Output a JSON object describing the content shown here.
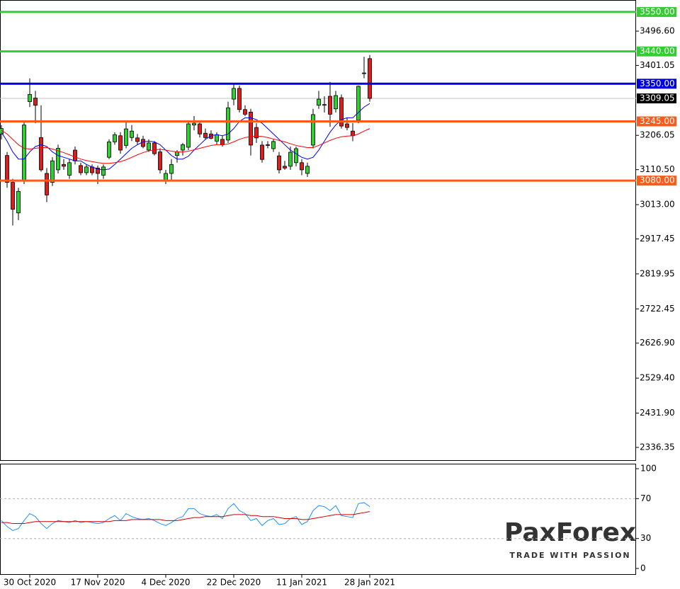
{
  "chart_data": [
    {
      "type": "candlestick",
      "categories": [
        null,
        null,
        null,
        null,
        null,
        "30 Oct 2020",
        null,
        null,
        null,
        null,
        null,
        null,
        null,
        null,
        null,
        null,
        null,
        "17 Nov 2020",
        null,
        null,
        null,
        null,
        null,
        null,
        null,
        null,
        null,
        null,
        null,
        "4 Dec 2020",
        null,
        null,
        null,
        null,
        null,
        null,
        null,
        null,
        null,
        null,
        null,
        "22 Dec 2020",
        null,
        null,
        null,
        null,
        null,
        null,
        null,
        null,
        null,
        null,
        null,
        "11 Jan 2021",
        null,
        null,
        null,
        null,
        null,
        null,
        null,
        null,
        null,
        null,
        null,
        "28 Jan 2021"
      ],
      "open": [
        3210,
        3150,
        3075,
        2990,
        3080,
        3300,
        3310,
        3200,
        3100,
        3075,
        3110,
        3125,
        3095,
        3165,
        3122,
        3102,
        3118,
        3115,
        3095,
        3145,
        3188,
        3205,
        3178,
        3200,
        3199,
        3195,
        3165,
        3185,
        3160,
        3080,
        3100,
        3150,
        3165,
        3173,
        3235,
        3238,
        3212,
        3210,
        3190,
        3195,
        3193,
        3307,
        3337,
        3278,
        3271,
        3228,
        3179,
        3180,
        3169,
        3149,
        3120,
        3120,
        3130,
        3130,
        3100,
        3179,
        3290,
        3290,
        3315,
        3280,
        3311,
        3238,
        3218,
        3248,
        3380,
        3420
      ],
      "high": [
        3235,
        3160,
        3085,
        3060,
        3245,
        3365,
        3330,
        3290,
        3115,
        3145,
        3180,
        3140,
        3140,
        3175,
        3130,
        3125,
        3125,
        3122,
        3125,
        3195,
        3215,
        3215,
        3245,
        3235,
        3210,
        3205,
        3195,
        3190,
        3170,
        3110,
        3140,
        3165,
        3185,
        3245,
        3260,
        3245,
        3225,
        3220,
        3215,
        3205,
        3300,
        3350,
        3345,
        3290,
        3280,
        3240,
        3190,
        3190,
        3195,
        3160,
        3135,
        3175,
        3175,
        3140,
        3130,
        3280,
        3330,
        3315,
        3355,
        3330,
        3320,
        3255,
        3240,
        3345,
        3425,
        3430
      ],
      "low": [
        3195,
        3060,
        2955,
        2970,
        3070,
        3285,
        3240,
        3105,
        3020,
        3065,
        3100,
        3110,
        3085,
        3125,
        3095,
        3095,
        3095,
        3070,
        3085,
        3140,
        3180,
        3155,
        3170,
        3190,
        3180,
        3170,
        3160,
        3150,
        3100,
        3070,
        3080,
        3130,
        3150,
        3165,
        3220,
        3200,
        3195,
        3195,
        3180,
        3175,
        3185,
        3290,
        3270,
        3260,
        3150,
        3185,
        3130,
        3170,
        3160,
        3100,
        3110,
        3110,
        3120,
        3095,
        3090,
        3170,
        3280,
        3270,
        3230,
        3270,
        3225,
        3220,
        3190,
        3240,
        3365,
        3300
      ],
      "close": [
        3225,
        3075,
        3000,
        3050,
        3235,
        3320,
        3290,
        3110,
        3040,
        3135,
        3170,
        3120,
        3130,
        3135,
        3102,
        3118,
        3102,
        3100,
        3118,
        3188,
        3208,
        3165,
        3224,
        3218,
        3189,
        3175,
        3185,
        3155,
        3110,
        3100,
        3125,
        3160,
        3180,
        3238,
        3240,
        3210,
        3200,
        3198,
        3208,
        3180,
        3283,
        3337,
        3278,
        3265,
        3179,
        3199,
        3139,
        3179,
        3189,
        3110,
        3115,
        3159,
        3169,
        3110,
        3120,
        3264,
        3307,
        3292,
        3265,
        3317,
        3232,
        3228,
        3205,
        3343,
        3380,
        3309.05
      ],
      "up_color": "#32cd32",
      "down_color": "#d81f1f",
      "series": [
        {
          "color": "#0000ff",
          "values": [
            3215,
            3190,
            3160,
            3140,
            3140,
            3160,
            3175,
            3180,
            3175,
            3160,
            3150,
            3145,
            3140,
            3135,
            3135,
            3125,
            3118,
            3112,
            3110,
            3112,
            3125,
            3140,
            3155,
            3170,
            3180,
            3188,
            3190,
            3188,
            3180,
            3165,
            3150,
            3140,
            3140,
            3148,
            3165,
            3180,
            3195,
            3205,
            3208,
            3205,
            3210,
            3225,
            3245,
            3255,
            3255,
            3250,
            3240,
            3225,
            3210,
            3195,
            3180,
            3165,
            3155,
            3145,
            3140,
            3145,
            3165,
            3190,
            3215,
            3235,
            3250,
            3255,
            3255,
            3270,
            3285,
            3295
          ]
        },
        {
          "color": "#ff0000",
          "values": [
            3220,
            3210,
            3195,
            3180,
            3170,
            3168,
            3170,
            3172,
            3172,
            3168,
            3163,
            3158,
            3152,
            3146,
            3140,
            3136,
            3133,
            3130,
            3128,
            3128,
            3130,
            3133,
            3138,
            3145,
            3152,
            3158,
            3163,
            3166,
            3167,
            3165,
            3162,
            3160,
            3160,
            3162,
            3166,
            3170,
            3174,
            3178,
            3180,
            3180,
            3182,
            3188,
            3195,
            3200,
            3203,
            3204,
            3203,
            3200,
            3196,
            3192,
            3188,
            3183,
            3178,
            3175,
            3172,
            3172,
            3178,
            3185,
            3192,
            3198,
            3202,
            3204,
            3205,
            3210,
            3218,
            3225
          ]
        }
      ],
      "levels": [
        {
          "value": 3550,
          "label": "3550.00",
          "color": "#33cc33"
        },
        {
          "value": 3440,
          "label": "3440.00",
          "color": "#33cc33"
        },
        {
          "value": 3350,
          "label": "3350.00",
          "color": "#0000dd"
        },
        {
          "value": 3245,
          "label": "3245.00",
          "color": "#ff5a1a"
        },
        {
          "value": 3080,
          "label": "3080.00",
          "color": "#ff5a1a"
        }
      ],
      "ylim": [
        2300.8,
        3583.4
      ],
      "yticks": [
        {
          "value": 3496.6,
          "label": "3496.60"
        },
        3401.05,
        3206.05,
        {
          "value": 3110.5,
          "label": "3110.50"
        },
        {
          "value": 3013,
          "label": "3013.00"
        },
        2917.45,
        2819.95,
        2722.45,
        {
          "value": 2626.9,
          "label": "2626.90"
        },
        {
          "value": 2529.4,
          "label": "2529.40"
        },
        {
          "value": 2431.9,
          "label": "2431.90"
        },
        2336.35
      ]
    },
    {
      "type": "line",
      "series": [
        {
          "color": "#1e90ff",
          "values": [
            48,
            42,
            38,
            40,
            48,
            55,
            52,
            45,
            40,
            45,
            48,
            47,
            46,
            48,
            46,
            47,
            46,
            45,
            46,
            50,
            53,
            48,
            55,
            52,
            50,
            49,
            50,
            48,
            45,
            43,
            46,
            50,
            52,
            60,
            60,
            55,
            53,
            52,
            54,
            50,
            60,
            65,
            58,
            55,
            48,
            50,
            43,
            48,
            50,
            44,
            45,
            50,
            52,
            44,
            47,
            58,
            63,
            62,
            58,
            63,
            53,
            52,
            51,
            65,
            66,
            62
          ]
        },
        {
          "color": "#cc0000",
          "values": [
            46,
            46,
            45,
            45,
            45,
            46,
            47,
            47,
            47,
            47,
            47,
            47,
            47,
            47,
            47,
            47,
            47,
            47,
            47,
            47,
            48,
            48,
            48,
            49,
            49,
            49,
            49,
            49,
            49,
            48,
            48,
            48,
            49,
            50,
            51,
            51,
            52,
            52,
            52,
            52,
            53,
            54,
            54,
            54,
            53,
            53,
            52,
            52,
            52,
            51,
            50,
            50,
            50,
            49,
            49,
            50,
            51,
            52,
            53,
            54,
            54,
            54,
            54,
            55,
            56,
            57
          ]
        }
      ],
      "ylim": [
        -6.4,
        105
      ],
      "yticks": [
        100,
        70,
        30,
        0
      ],
      "levels": [
        70,
        30
      ]
    }
  ],
  "logo": {
    "name": "PaxForex",
    "tagline": "TRADE WITH PASSION"
  }
}
